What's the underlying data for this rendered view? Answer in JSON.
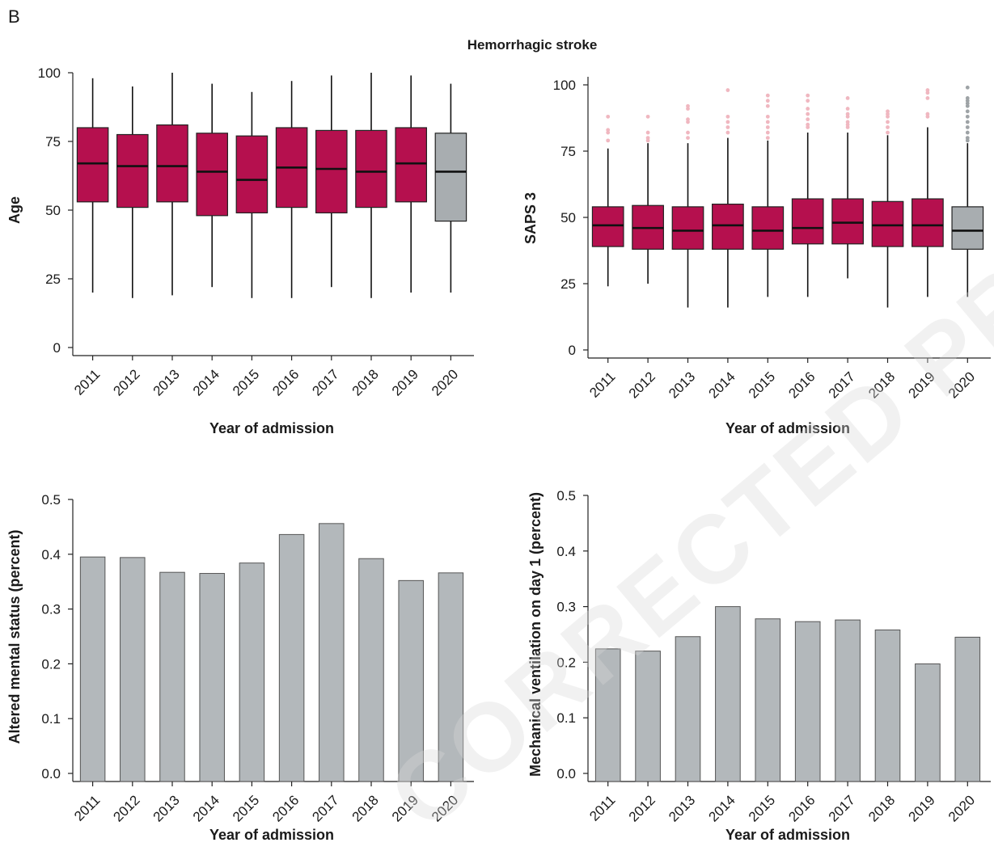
{
  "panel_letter": "B",
  "title": "Hemorrhagic stroke",
  "watermark": "CORRECTED PROOF",
  "colors": {
    "box_main": "#b5104e",
    "box_2020": "#a8adb0",
    "bar": "#b3b8bb",
    "outlier_main": "#f0b7c0",
    "outlier_2020": "#9ea3a6"
  },
  "chart_data": [
    {
      "id": "age",
      "type": "box",
      "xlabel": "Year of admission",
      "ylabel": "Age",
      "ylim": [
        0,
        100
      ],
      "yticks": [
        0,
        25,
        50,
        75,
        100
      ],
      "categories": [
        "2011",
        "2012",
        "2013",
        "2014",
        "2015",
        "2016",
        "2017",
        "2018",
        "2019",
        "2020"
      ],
      "boxes": [
        {
          "min": 20,
          "q1": 53,
          "median": 67,
          "q3": 80,
          "max": 98
        },
        {
          "min": 18,
          "q1": 51,
          "median": 66,
          "q3": 77.5,
          "max": 95
        },
        {
          "min": 19,
          "q1": 53,
          "median": 66,
          "q3": 81,
          "max": 100
        },
        {
          "min": 22,
          "q1": 48,
          "median": 64,
          "q3": 78,
          "max": 96
        },
        {
          "min": 18,
          "q1": 49,
          "median": 61,
          "q3": 77,
          "max": 93
        },
        {
          "min": 18,
          "q1": 51,
          "median": 65.5,
          "q3": 80,
          "max": 97
        },
        {
          "min": 22,
          "q1": 49,
          "median": 65,
          "q3": 79,
          "max": 99
        },
        {
          "min": 18,
          "q1": 51,
          "median": 64,
          "q3": 79,
          "max": 100
        },
        {
          "min": 20,
          "q1": 53,
          "median": 67,
          "q3": 80,
          "max": 99
        },
        {
          "min": 20,
          "q1": 46,
          "median": 64,
          "q3": 78,
          "max": 96
        }
      ]
    },
    {
      "id": "saps",
      "type": "box",
      "xlabel": "Year of admission",
      "ylabel": "SAPS 3",
      "ylim": [
        0,
        100
      ],
      "yticks": [
        0,
        25,
        50,
        75,
        100
      ],
      "categories": [
        "2011",
        "2012",
        "2013",
        "2014",
        "2015",
        "2016",
        "2017",
        "2018",
        "2019",
        "2020"
      ],
      "boxes": [
        {
          "min": 24,
          "q1": 39,
          "median": 47,
          "q3": 54,
          "max": 76,
          "outliers": [
            79,
            82,
            83,
            88
          ]
        },
        {
          "min": 25,
          "q1": 38,
          "median": 46,
          "q3": 54.5,
          "max": 78,
          "outliers": [
            79,
            80,
            82,
            88
          ]
        },
        {
          "min": 16,
          "q1": 38,
          "median": 45,
          "q3": 54,
          "max": 78,
          "outliers": [
            80,
            82,
            86,
            87,
            91,
            92
          ]
        },
        {
          "min": 16,
          "q1": 38,
          "median": 47,
          "q3": 55,
          "max": 80,
          "outliers": [
            82,
            84,
            86,
            88,
            98
          ]
        },
        {
          "min": 20,
          "q1": 38,
          "median": 45,
          "q3": 54,
          "max": 79,
          "outliers": [
            80,
            82,
            84,
            86,
            88,
            92,
            94,
            96
          ]
        },
        {
          "min": 20,
          "q1": 40,
          "median": 46,
          "q3": 57,
          "max": 82,
          "outliers": [
            84,
            85,
            87,
            89,
            91,
            94,
            96
          ]
        },
        {
          "min": 27,
          "q1": 40,
          "median": 48,
          "q3": 57,
          "max": 82,
          "outliers": [
            84,
            85,
            86,
            88,
            89,
            91,
            95
          ]
        },
        {
          "min": 16,
          "q1": 39,
          "median": 47,
          "q3": 56,
          "max": 81,
          "outliers": [
            82,
            84,
            86,
            88,
            89,
            90
          ]
        },
        {
          "min": 20,
          "q1": 39,
          "median": 47,
          "q3": 57,
          "max": 84,
          "outliers": [
            88,
            89,
            95,
            97,
            98
          ]
        },
        {
          "min": 20,
          "q1": 38,
          "median": 45,
          "q3": 54,
          "max": 78,
          "outliers": [
            79,
            80,
            82,
            84,
            86,
            88,
            90,
            92,
            93,
            94,
            95,
            99
          ]
        }
      ]
    },
    {
      "id": "ams",
      "type": "bar",
      "xlabel": "Year of admission",
      "ylabel": "Altered mental status (percent)",
      "ylim": [
        0,
        0.5
      ],
      "yticks": [
        "0.0",
        "0.1",
        "0.2",
        "0.3",
        "0.4",
        "0.5"
      ],
      "categories": [
        "2011",
        "2012",
        "2013",
        "2014",
        "2015",
        "2016",
        "2017",
        "2018",
        "2019",
        "2020"
      ],
      "values": [
        0.395,
        0.394,
        0.367,
        0.365,
        0.384,
        0.436,
        0.456,
        0.392,
        0.352,
        0.366
      ]
    },
    {
      "id": "mv",
      "type": "bar",
      "xlabel": "Year of admission",
      "ylabel": "Mechanical ventilation on day 1 (percent)",
      "ylim": [
        0,
        0.5
      ],
      "yticks": [
        "0.0",
        "0.1",
        "0.2",
        "0.3",
        "0.4",
        "0.5"
      ],
      "categories": [
        "2011",
        "2012",
        "2013",
        "2014",
        "2015",
        "2016",
        "2017",
        "2018",
        "2019",
        "2020"
      ],
      "values": [
        0.224,
        0.22,
        0.246,
        0.3,
        0.278,
        0.273,
        0.276,
        0.258,
        0.197,
        0.245
      ]
    }
  ]
}
